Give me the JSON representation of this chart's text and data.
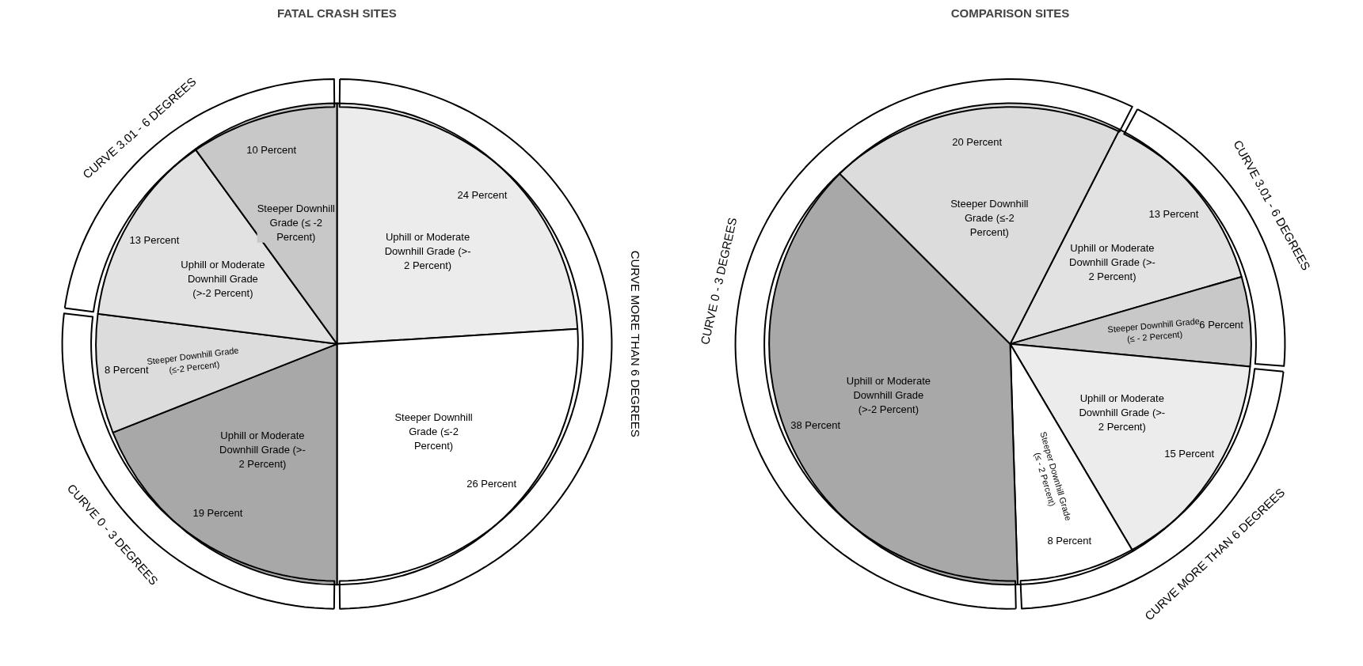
{
  "chart_data": [
    {
      "type": "pie",
      "title": "FATAL CRASH SITES",
      "categories": [
        "Uphill or Moderate Downhill Grade (>- 2 Percent)",
        "Steeper Downhill Grade (≤-2 Percent)",
        "Uphill or Moderate Downhill Grade (>- 2 Percent)",
        "Steeper Downhill Grade (≤-2 Percent)",
        "Uphill or Moderate Downhill Grade (>-2 Percent)",
        "Steeper Downhill Grade (≤ -2 Percent)"
      ],
      "values": [
        24,
        26,
        19,
        8,
        13,
        10
      ],
      "colors": [
        "#ececec",
        "#ffffff",
        "#a8a8a8",
        "#dcdcdc",
        "#e2e2e2",
        "#c8c8c8"
      ],
      "value_labels": [
        "24 Percent",
        "26 Percent",
        "19 Percent",
        "8 Percent",
        "13 Percent",
        "10 Percent"
      ],
      "annotations": [
        "CURVE MORE THAN 6 DEGREES",
        "CURVE 0 - 3 DEGREES",
        "CURVE 3.01 - 6 DEGREES"
      ]
    },
    {
      "type": "pie",
      "title": "COMPARISON SITES",
      "categories": [
        "Uphill or Moderate Downhill Grade (>- 2 Percent)",
        "Steeper Downhill Grade (≤ - 2 Percent)",
        "Uphill or Moderate Downhill Grade (>- 2 Percent)",
        "Steeper Downhill Grade (≤ - 2 Percent)",
        "Uphill or Moderate Downhill Grade (>-2 Percent)",
        "Steeper Downhill Grade (≤-2 Percent)"
      ],
      "values": [
        13,
        6,
        15,
        8,
        38,
        20
      ],
      "colors": [
        "#e2e2e2",
        "#c8c8c8",
        "#ececec",
        "#ffffff",
        "#a8a8a8",
        "#dcdcdc"
      ],
      "value_labels": [
        "13 Percent",
        "6 Percent",
        "15 Percent",
        "8 Percent",
        "38 Percent",
        "20 Percent"
      ],
      "annotations": [
        "CURVE 3.01 - 6 DEGREES",
        "CURVE MORE THAN 6 DEGREES",
        "CURVE 0 - 3 DEGREES"
      ]
    }
  ]
}
